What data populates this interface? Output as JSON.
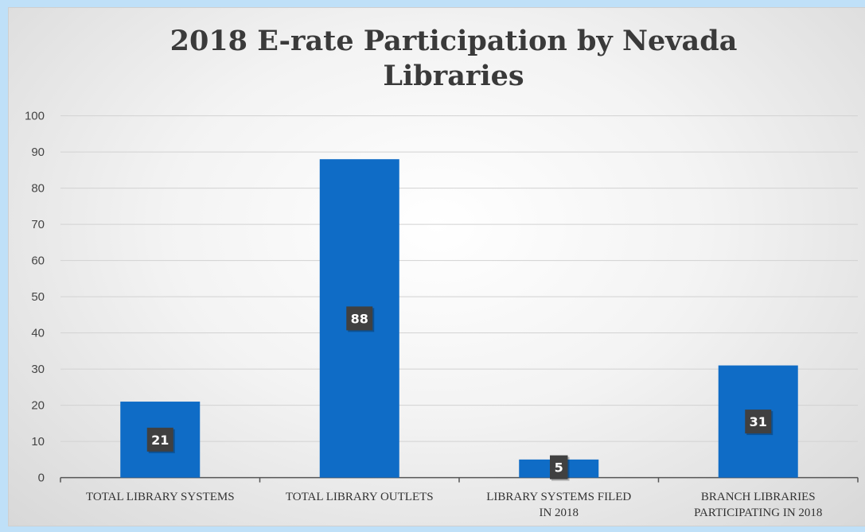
{
  "chart_data": {
    "type": "bar",
    "title": "2018 E-rate Participation by Nevada Libraries",
    "categories": [
      [
        "TOTAL LIBRARY SYSTEMS"
      ],
      [
        "TOTAL LIBRARY OUTLETS"
      ],
      [
        "LIBRARY SYSTEMS FILED",
        "IN 2018"
      ],
      [
        "BRANCH LIBRARIES",
        "PARTICIPATING IN 2018"
      ]
    ],
    "values": [
      21,
      88,
      5,
      31
    ],
    "data_labels": [
      "21",
      "88",
      "5",
      "31"
    ],
    "ylim": [
      0,
      100
    ],
    "yticks": [
      "0",
      "10",
      "20",
      "30",
      "40",
      "50",
      "60",
      "70",
      "80",
      "90",
      "100"
    ],
    "grid": true,
    "legend": "none",
    "colors": {
      "bar": "#0f6cc6",
      "data_label_bg": "#404040",
      "gridline": "#d2d2d2",
      "axis": "#555555",
      "frame": "#bfe0f8"
    }
  }
}
